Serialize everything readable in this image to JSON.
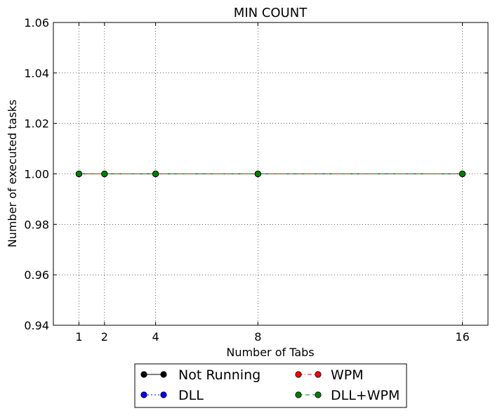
{
  "chart_data": {
    "type": "line",
    "title": "MIN COUNT",
    "xlabel": "Number of Tabs",
    "ylabel": "Number of executed tasks",
    "x": [
      1,
      2,
      4,
      8,
      16
    ],
    "xlim": [
      -0.0,
      17.0
    ],
    "ylim": [
      0.94,
      1.06
    ],
    "x_ticks": [
      1,
      2,
      4,
      8,
      16
    ],
    "x_tick_labels": [
      "1",
      "2",
      "4",
      "8",
      "16"
    ],
    "y_ticks": [
      0.94,
      0.96,
      0.98,
      1.0,
      1.02,
      1.04,
      1.06
    ],
    "y_tick_labels": [
      "0.94",
      "0.96",
      "0.98",
      "1.00",
      "1.02",
      "1.04",
      "1.06"
    ],
    "grid": true,
    "legend_position": "below plot, centered",
    "series": [
      {
        "name": "Not Running",
        "values": [
          1,
          1,
          1,
          1,
          1
        ],
        "color": "#000000",
        "line_style": "solid"
      },
      {
        "name": "DLL",
        "values": [
          1,
          1,
          1,
          1,
          1
        ],
        "color": "#0000ff",
        "line_style": "dotted"
      },
      {
        "name": "WPM",
        "values": [
          1,
          1,
          1,
          1,
          1
        ],
        "color": "#ff0000",
        "line_style": "dashdot"
      },
      {
        "name": "DLL+WPM",
        "values": [
          1,
          1,
          1,
          1,
          1
        ],
        "color": "#008000",
        "line_style": "dashed"
      }
    ]
  }
}
